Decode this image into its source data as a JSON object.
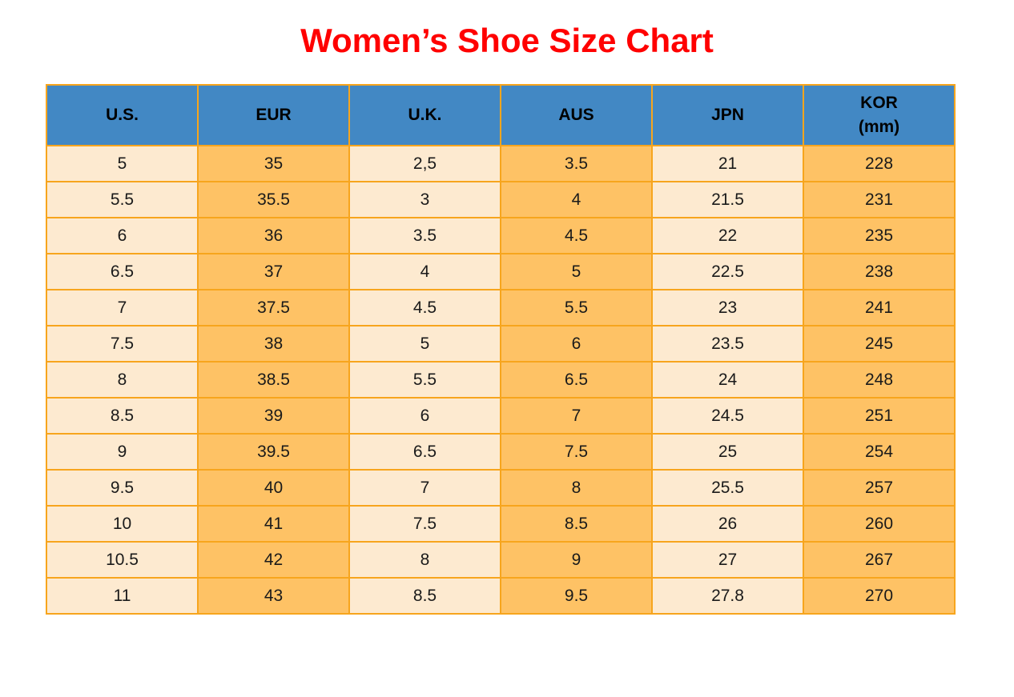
{
  "title": "Women’s Shoe Size Chart",
  "colors": {
    "title": "#FF0000",
    "header_bg": "#4288C4",
    "header_text": "#000000",
    "column_light": "#FDEAD0",
    "column_dark": "#FEC265",
    "border": "#F7A51D",
    "cell_text": "#1A1A1A"
  },
  "chart_data": {
    "type": "table",
    "title": "Women’s Shoe Size Chart",
    "columns": [
      {
        "key": "us",
        "label": "U.S."
      },
      {
        "key": "eur",
        "label": "EUR"
      },
      {
        "key": "uk",
        "label": "U.K."
      },
      {
        "key": "aus",
        "label": "AUS"
      },
      {
        "key": "jpn",
        "label": "JPN"
      },
      {
        "key": "kor",
        "label": "KOR\n(mm)"
      }
    ],
    "rows": [
      [
        "5",
        "35",
        "2,5",
        "3.5",
        "21",
        "228"
      ],
      [
        "5.5",
        "35.5",
        "3",
        "4",
        "21.5",
        "231"
      ],
      [
        "6",
        "36",
        "3.5",
        "4.5",
        "22",
        "235"
      ],
      [
        "6.5",
        "37",
        "4",
        "5",
        "22.5",
        "238"
      ],
      [
        "7",
        "37.5",
        "4.5",
        "5.5",
        "23",
        "241"
      ],
      [
        "7.5",
        "38",
        "5",
        "6",
        "23.5",
        "245"
      ],
      [
        "8",
        "38.5",
        "5.5",
        "6.5",
        "24",
        "248"
      ],
      [
        "8.5",
        "39",
        "6",
        "7",
        "24.5",
        "251"
      ],
      [
        "9",
        "39.5",
        "6.5",
        "7.5",
        "25",
        "254"
      ],
      [
        "9.5",
        "40",
        "7",
        "8",
        "25.5",
        "257"
      ],
      [
        "10",
        "41",
        "7.5",
        "8.5",
        "26",
        "260"
      ],
      [
        "10.5",
        "42",
        "8",
        "9",
        "27",
        "267"
      ],
      [
        "11",
        "43",
        "8.5",
        "9.5",
        "27.8",
        "270"
      ]
    ],
    "layout": {
      "column_shading_pattern": [
        "light",
        "dark",
        "light",
        "dark",
        "light",
        "dark"
      ],
      "grid": true,
      "header_position": "top"
    }
  }
}
